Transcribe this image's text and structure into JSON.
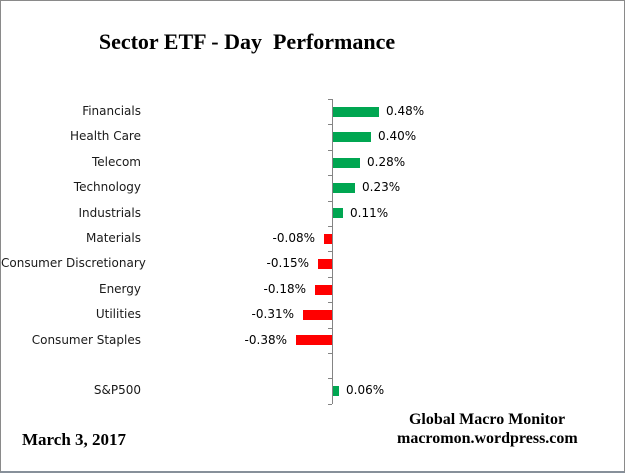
{
  "chart_data": {
    "type": "bar",
    "orientation": "horizontal",
    "title": "Sector ETF - Day  Performance",
    "unit": "%",
    "categories": [
      "Financials",
      "Health Care",
      "Telecom",
      "Technology",
      "Industrials",
      "Materials",
      "Consumer Discretionary",
      "Energy",
      "Utilities",
      "Consumer Staples",
      "",
      "S&P500"
    ],
    "values": [
      0.48,
      0.4,
      0.28,
      0.23,
      0.11,
      -0.08,
      -0.15,
      -0.18,
      -0.31,
      -0.38,
      null,
      0.06
    ],
    "value_labels": [
      "0.48%",
      "0.40%",
      "0.28%",
      "0.23%",
      "0.11%",
      "-0.08%",
      "-0.15%",
      "-0.18%",
      "-0.31%",
      "-0.38%",
      "",
      "0.06%"
    ],
    "positive_color": "#00A651",
    "negative_color": "#FF0000",
    "axis_color": "#848484",
    "grid": false,
    "legend": false
  },
  "footer": {
    "date": "March 3, 2017",
    "source_line1": "Global Macro Monitor",
    "source_line2": "macromon.wordpress.com"
  }
}
